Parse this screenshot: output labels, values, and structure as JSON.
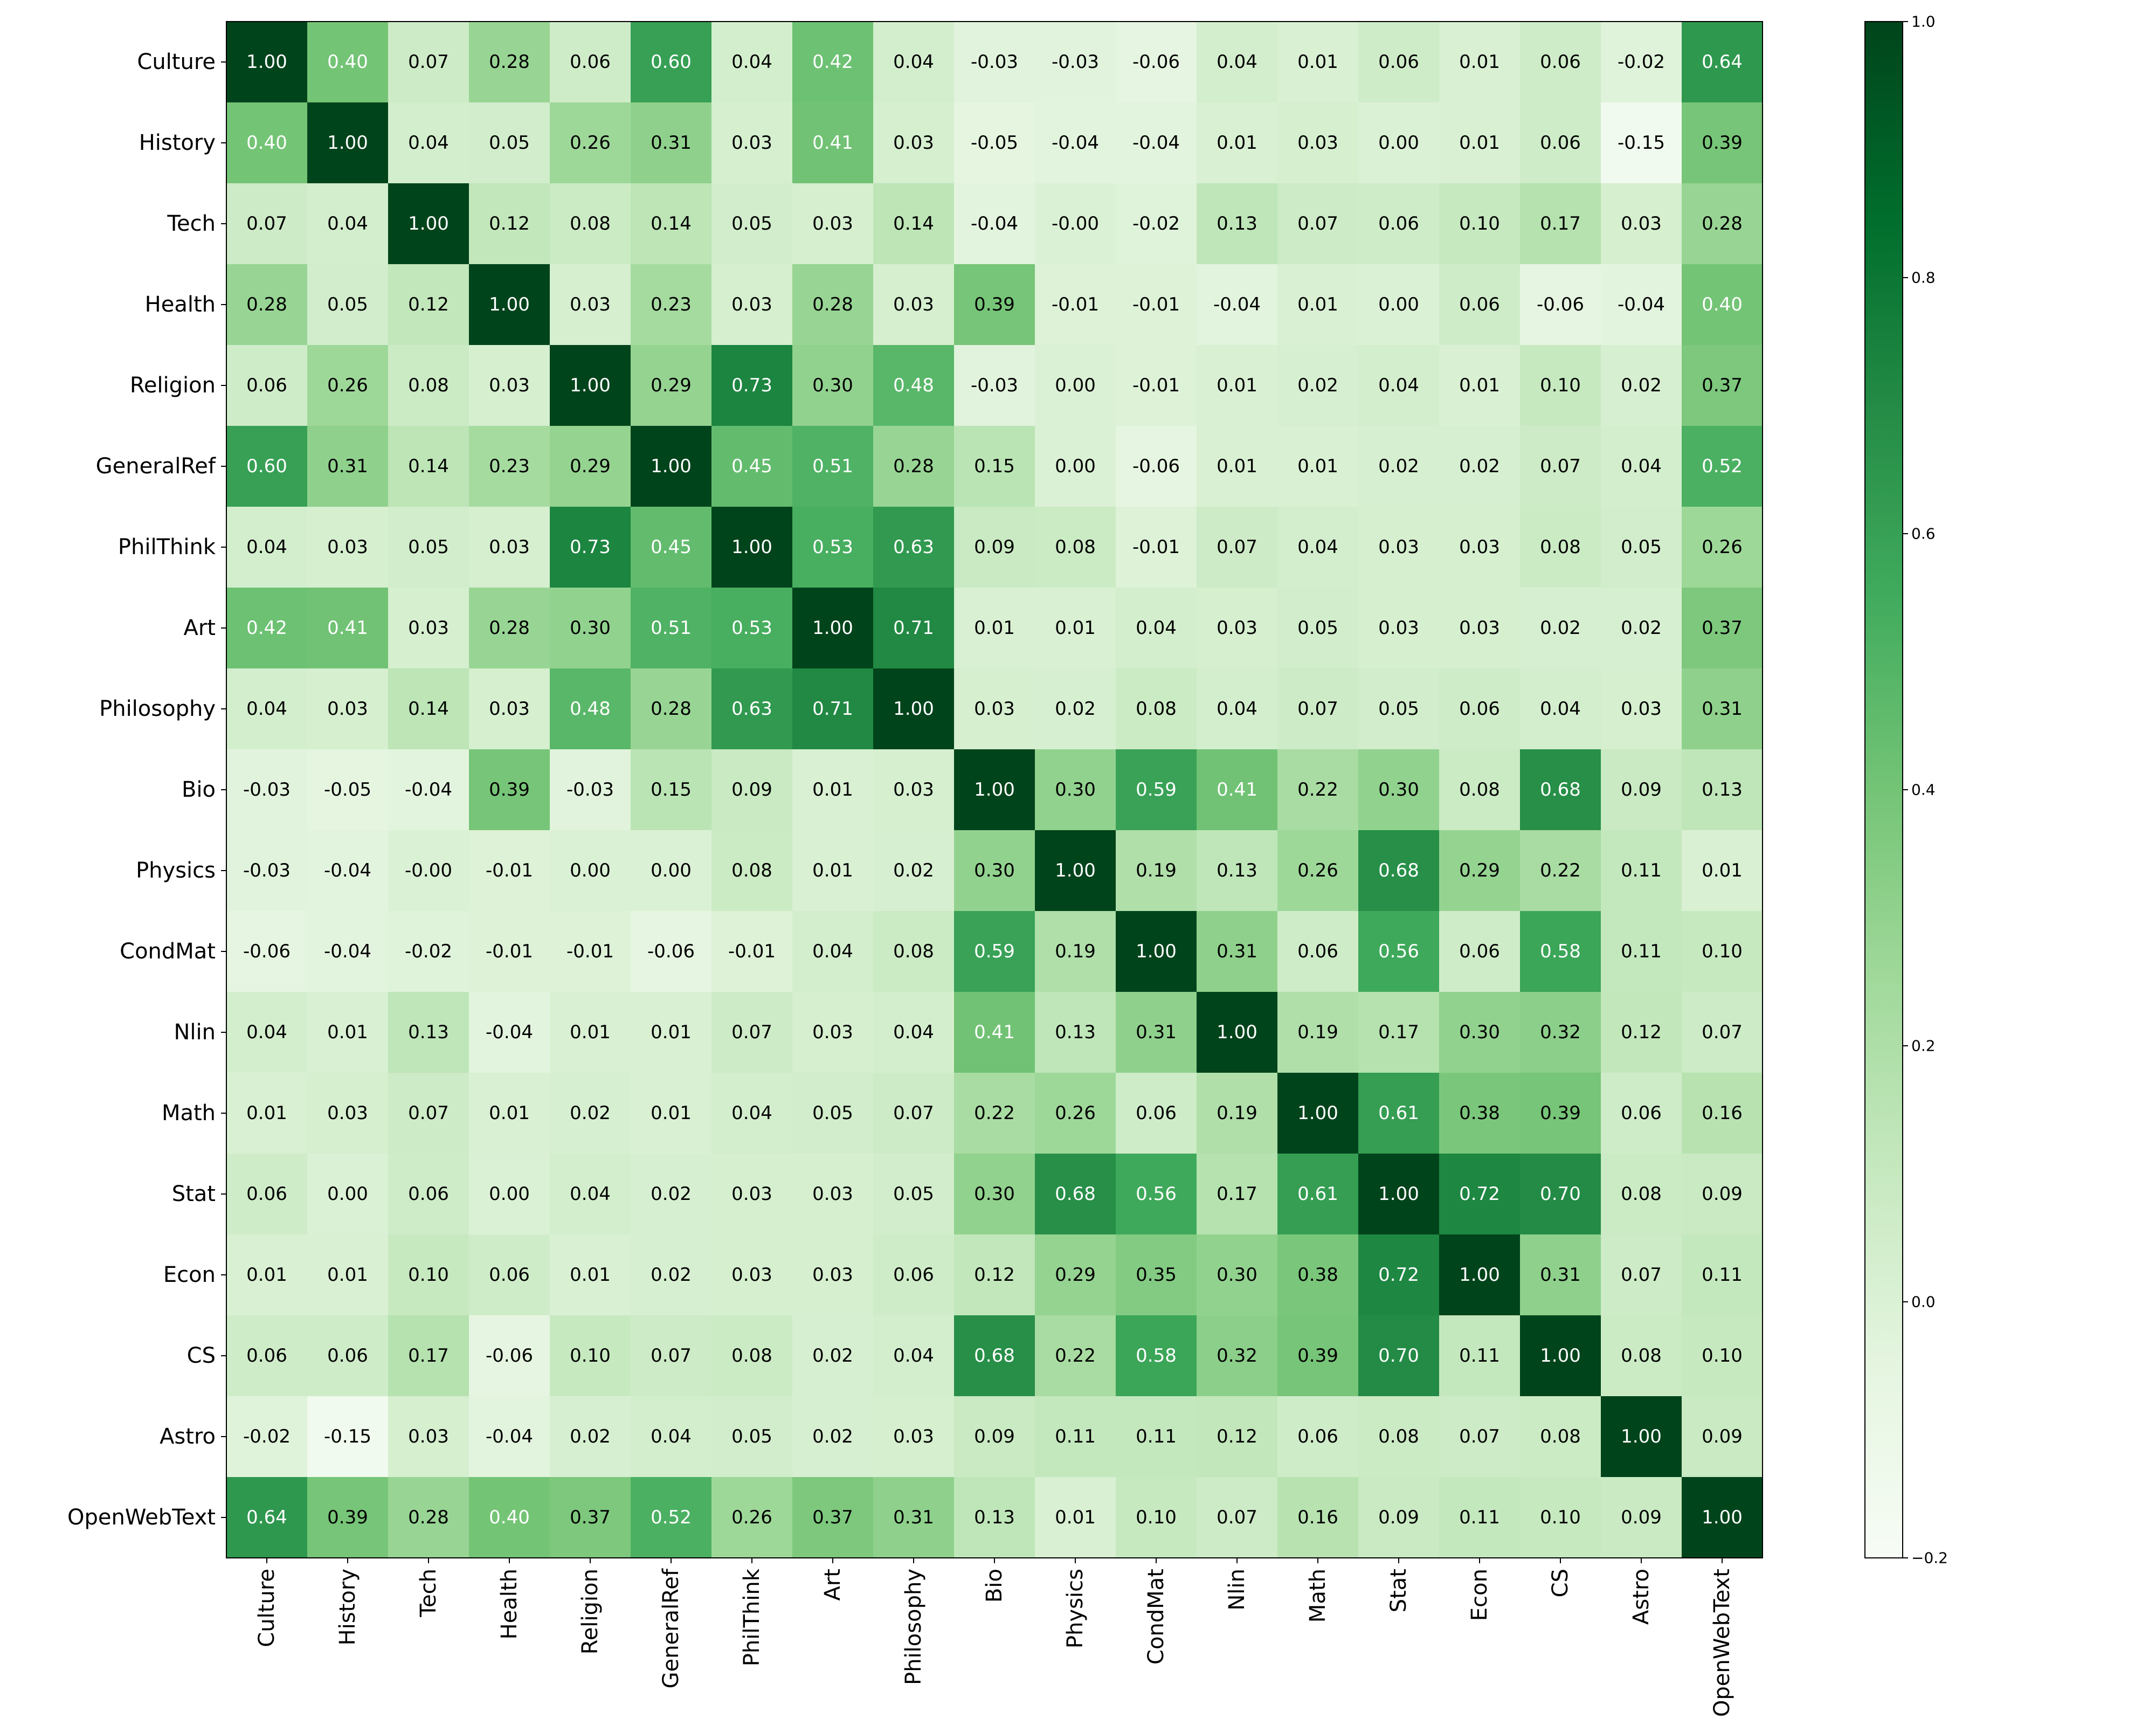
{
  "chart_data": {
    "type": "heatmap",
    "title": "",
    "xlabel": "",
    "ylabel": "",
    "labels": [
      "Culture",
      "History",
      "Tech",
      "Health",
      "Religion",
      "GeneralRef",
      "PhilThink",
      "Art",
      "Philosophy",
      "Bio",
      "Physics",
      "CondMat",
      "Nlin",
      "Math",
      "Stat",
      "Econ",
      "CS",
      "Astro",
      "OpenWebText"
    ],
    "matrix": [
      [
        1.0,
        0.4,
        0.07,
        0.28,
        0.06,
        0.6,
        0.04,
        0.42,
        0.04,
        -0.03,
        -0.03,
        -0.06,
        0.04,
        0.01,
        0.06,
        0.01,
        0.06,
        -0.02,
        0.64
      ],
      [
        0.4,
        1.0,
        0.04,
        0.05,
        0.26,
        0.31,
        0.03,
        0.41,
        0.03,
        -0.05,
        -0.04,
        -0.04,
        0.01,
        0.03,
        0.0,
        0.01,
        0.06,
        -0.15,
        0.39
      ],
      [
        0.07,
        0.04,
        1.0,
        0.12,
        0.08,
        0.14,
        0.05,
        0.03,
        0.14,
        -0.04,
        -0.0,
        -0.02,
        0.13,
        0.07,
        0.06,
        0.1,
        0.17,
        0.03,
        0.28
      ],
      [
        0.28,
        0.05,
        0.12,
        1.0,
        0.03,
        0.23,
        0.03,
        0.28,
        0.03,
        0.39,
        -0.01,
        -0.01,
        -0.04,
        0.01,
        0.0,
        0.06,
        -0.06,
        -0.04,
        0.4
      ],
      [
        0.06,
        0.26,
        0.08,
        0.03,
        1.0,
        0.29,
        0.73,
        0.3,
        0.48,
        -0.03,
        0.0,
        -0.01,
        0.01,
        0.02,
        0.04,
        0.01,
        0.1,
        0.02,
        0.37
      ],
      [
        0.6,
        0.31,
        0.14,
        0.23,
        0.29,
        1.0,
        0.45,
        0.51,
        0.28,
        0.15,
        0.0,
        -0.06,
        0.01,
        0.01,
        0.02,
        0.02,
        0.07,
        0.04,
        0.52
      ],
      [
        0.04,
        0.03,
        0.05,
        0.03,
        0.73,
        0.45,
        1.0,
        0.53,
        0.63,
        0.09,
        0.08,
        -0.01,
        0.07,
        0.04,
        0.03,
        0.03,
        0.08,
        0.05,
        0.26
      ],
      [
        0.42,
        0.41,
        0.03,
        0.28,
        0.3,
        0.51,
        0.53,
        1.0,
        0.71,
        0.01,
        0.01,
        0.04,
        0.03,
        0.05,
        0.03,
        0.03,
        0.02,
        0.02,
        0.37
      ],
      [
        0.04,
        0.03,
        0.14,
        0.03,
        0.48,
        0.28,
        0.63,
        0.71,
        1.0,
        0.03,
        0.02,
        0.08,
        0.04,
        0.07,
        0.05,
        0.06,
        0.04,
        0.03,
        0.31
      ],
      [
        -0.03,
        -0.05,
        -0.04,
        0.39,
        -0.03,
        0.15,
        0.09,
        0.01,
        0.03,
        1.0,
        0.3,
        0.59,
        0.41,
        0.22,
        0.3,
        0.08,
        0.68,
        0.09,
        0.13
      ],
      [
        -0.03,
        -0.04,
        -0.0,
        -0.01,
        0.0,
        0.0,
        0.08,
        0.01,
        0.02,
        0.3,
        1.0,
        0.19,
        0.13,
        0.26,
        0.68,
        0.29,
        0.22,
        0.11,
        0.01
      ],
      [
        -0.06,
        -0.04,
        -0.02,
        -0.01,
        -0.01,
        -0.06,
        -0.01,
        0.04,
        0.08,
        0.59,
        0.19,
        1.0,
        0.31,
        0.06,
        0.56,
        0.06,
        0.58,
        0.11,
        0.1
      ],
      [
        0.04,
        0.01,
        0.13,
        -0.04,
        0.01,
        0.01,
        0.07,
        0.03,
        0.04,
        0.41,
        0.13,
        0.31,
        1.0,
        0.19,
        0.17,
        0.3,
        0.32,
        0.12,
        0.07
      ],
      [
        0.01,
        0.03,
        0.07,
        0.01,
        0.02,
        0.01,
        0.04,
        0.05,
        0.07,
        0.22,
        0.26,
        0.06,
        0.19,
        1.0,
        0.61,
        0.38,
        0.39,
        0.06,
        0.16
      ],
      [
        0.06,
        0.0,
        0.06,
        0.0,
        0.04,
        0.02,
        0.03,
        0.03,
        0.05,
        0.3,
        0.68,
        0.56,
        0.17,
        0.61,
        1.0,
        0.72,
        0.7,
        0.08,
        0.09
      ],
      [
        0.01,
        0.01,
        0.1,
        0.06,
        0.01,
        0.02,
        0.03,
        0.03,
        0.06,
        0.12,
        0.29,
        0.35,
        0.3,
        0.38,
        0.72,
        1.0,
        0.31,
        0.07,
        0.11
      ],
      [
        0.06,
        0.06,
        0.17,
        -0.06,
        0.1,
        0.07,
        0.08,
        0.02,
        0.04,
        0.68,
        0.22,
        0.58,
        0.32,
        0.39,
        0.7,
        0.11,
        1.0,
        0.08,
        0.1
      ],
      [
        -0.02,
        -0.15,
        0.03,
        -0.04,
        0.02,
        0.04,
        0.05,
        0.02,
        0.03,
        0.09,
        0.11,
        0.11,
        0.12,
        0.06,
        0.08,
        0.07,
        0.08,
        1.0,
        0.09
      ],
      [
        0.64,
        0.39,
        0.28,
        0.4,
        0.37,
        0.52,
        0.26,
        0.37,
        0.31,
        0.13,
        0.01,
        0.1,
        0.07,
        0.16,
        0.09,
        0.11,
        0.1,
        0.09,
        1.0
      ]
    ],
    "value_format": "2 decimals",
    "colormap": "Greens",
    "vmin": -0.2,
    "vmax": 1.0,
    "colorbar": {
      "ticks": [
        -0.2,
        0.0,
        0.2,
        0.4,
        0.6,
        0.8,
        1.0
      ],
      "tick_labels": [
        "−0.2",
        "0.0",
        "0.2",
        "0.4",
        "0.6",
        "0.8",
        "1.0"
      ],
      "placement": "right"
    },
    "grid": false,
    "legend": "none",
    "colors": {
      "stops": [
        "#f7fcf5",
        "#e5f5e0",
        "#c7e9c0",
        "#a1d99b",
        "#74c476",
        "#41ab5d",
        "#238b45",
        "#006d2c",
        "#00441b"
      ],
      "text_dark": "#000000",
      "text_light": "#ffffff"
    }
  }
}
